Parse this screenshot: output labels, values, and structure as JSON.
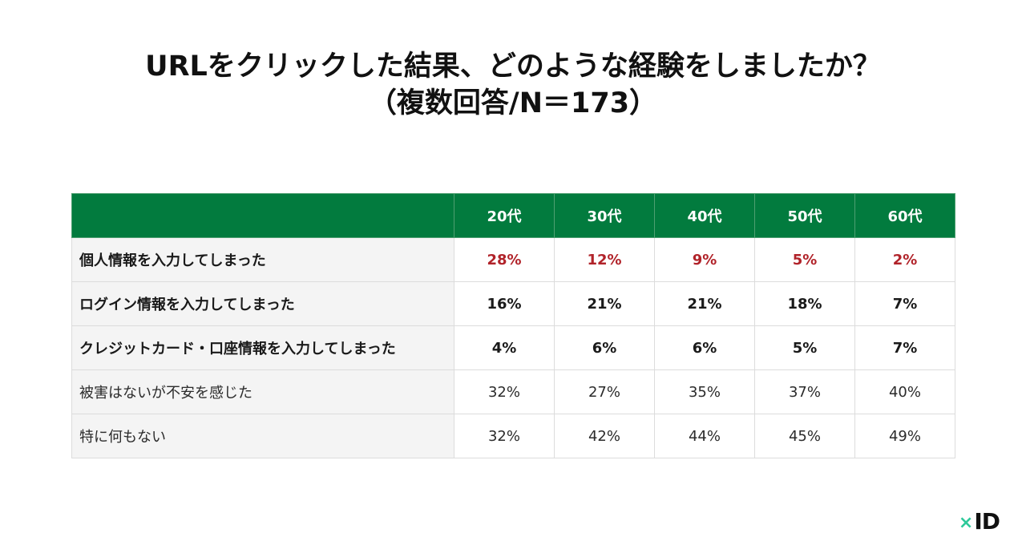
{
  "title": {
    "line1": "URLをクリックした結果、どのような経験をしましたか？",
    "line2": "（複数回答/N＝173）"
  },
  "chart_data": {
    "type": "table",
    "columns": [
      "20代",
      "30代",
      "40代",
      "50代",
      "60代"
    ],
    "rows": [
      {
        "label": "個人情報を入力してしまった",
        "values": [
          "28%",
          "12%",
          "9%",
          "5%",
          "2%"
        ]
      },
      {
        "label": "ログイン情報を入力してしまった",
        "values": [
          "16%",
          "21%",
          "21%",
          "18%",
          "7%"
        ]
      },
      {
        "label": "クレジットカード・口座情報を入力してしまった",
        "values": [
          "4%",
          "6%",
          "6%",
          "5%",
          "7%"
        ]
      },
      {
        "label": "被害はないが不安を感じた",
        "values": [
          "32%",
          "27%",
          "35%",
          "37%",
          "40%"
        ]
      },
      {
        "label": "特に何もない",
        "values": [
          "32%",
          "42%",
          "44%",
          "45%",
          "49%"
        ]
      }
    ]
  },
  "colors": {
    "header_bg": "#027b3e",
    "highlight_text": "#b1232a",
    "label_bg": "#f4f4f4",
    "logo_accent": "#2ec99a"
  },
  "logo": {
    "mark": "×",
    "text": "ID"
  }
}
